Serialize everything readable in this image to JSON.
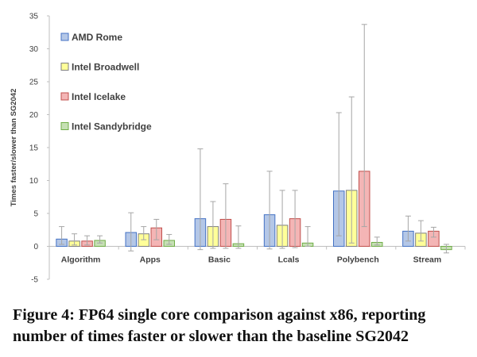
{
  "chart_data": {
    "type": "bar",
    "categories": [
      "Algorithm",
      "Apps",
      "Basic",
      "Lcals",
      "Polybench",
      "Stream"
    ],
    "ylabel": "Times faster/slower than SG2042",
    "xlabel": "",
    "ylim": [
      -5,
      35
    ],
    "yticks": [
      -5,
      0,
      5,
      10,
      15,
      20,
      25,
      30,
      35
    ],
    "grid": false,
    "legend_position": "top-left",
    "error_bars": true,
    "series": [
      {
        "name": "AMD Rome",
        "color": "#b4c7e7",
        "edge": "#4472c4",
        "values": [
          1.1,
          2.1,
          4.2,
          4.8,
          8.4,
          2.3
        ],
        "err_low": [
          0.3,
          -0.7,
          -0.5,
          -0.4,
          1.6,
          0.8
        ],
        "err_high": [
          3.0,
          5.1,
          14.8,
          11.4,
          20.3,
          4.6
        ]
      },
      {
        "name": "Intel Broadwell",
        "color": "#ffff99",
        "edge": "#7f7f7f",
        "values": [
          0.8,
          1.9,
          3.0,
          3.2,
          8.5,
          2.0
        ],
        "err_low": [
          0.2,
          1.0,
          -0.3,
          -0.3,
          0.5,
          0.8
        ],
        "err_high": [
          1.9,
          3.0,
          6.8,
          8.5,
          22.7,
          3.9
        ]
      },
      {
        "name": "Intel Icelake",
        "color": "#f4b5b5",
        "edge": "#c0504d",
        "values": [
          0.8,
          2.8,
          4.1,
          4.2,
          11.4,
          2.3
        ],
        "err_low": [
          0.2,
          1.0,
          -0.3,
          -0.2,
          3.0,
          1.4
        ],
        "err_high": [
          1.6,
          4.1,
          9.5,
          8.5,
          33.7,
          2.9
        ]
      },
      {
        "name": "Intel Sandybridge",
        "color": "#c6e0b4",
        "edge": "#70ad47",
        "values": [
          0.9,
          0.9,
          0.4,
          0.5,
          0.6,
          -0.5
        ],
        "err_low": [
          0.5,
          0.3,
          -0.3,
          0.0,
          0.2,
          -1.0
        ],
        "err_high": [
          1.6,
          1.8,
          3.1,
          3.0,
          1.4,
          0.3
        ]
      }
    ]
  },
  "caption": {
    "line1": "Figure 4: FP64 single core comparison against x86, reporting",
    "line2": "number of times faster or slower than the baseline SG2042"
  }
}
